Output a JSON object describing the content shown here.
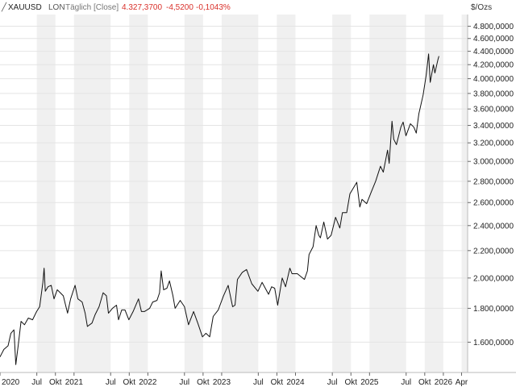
{
  "header": {
    "symbol": "XAUUSD",
    "exchange": "LON",
    "interval": "Täglich [Close]",
    "last": "4.327,3700",
    "change": "-4,5200",
    "change_pct": "-0,1043%",
    "unit": "$/Ozs"
  },
  "colors": {
    "background": "#ffffff",
    "band": "#f0f0f0",
    "line": "#111111",
    "negative": "#d9302a",
    "text": "#222222",
    "muted": "#777777"
  },
  "chart_data": {
    "type": "line",
    "yscale": "log",
    "ylim": [
      1440,
      5000
    ],
    "xlim": [
      "2020-01-01",
      "2026-05-01"
    ],
    "grid": true,
    "y_ticks": [
      {
        "v": 1600,
        "label": "1.600,0000"
      },
      {
        "v": 1800,
        "label": "1.800,0000"
      },
      {
        "v": 2000,
        "label": "2.000,0000"
      },
      {
        "v": 2200,
        "label": "2.200,0000"
      },
      {
        "v": 2400,
        "label": "2.400,0000"
      },
      {
        "v": 2600,
        "label": "2.600,0000"
      },
      {
        "v": 2800,
        "label": "2.800,0000"
      },
      {
        "v": 3000,
        "label": "3.000,0000"
      },
      {
        "v": 3200,
        "label": "3.200,0000"
      },
      {
        "v": 3400,
        "label": "3.400,0000"
      },
      {
        "v": 3600,
        "label": "3.600,0000"
      },
      {
        "v": 3800,
        "label": "3.800,0000"
      },
      {
        "v": 4000,
        "label": "4.000,0000"
      },
      {
        "v": 4200,
        "label": "4.200,0000"
      },
      {
        "v": 4400,
        "label": "4.400,0000"
      },
      {
        "v": 4600,
        "label": "4.600,0000"
      },
      {
        "v": 4800,
        "label": "4.800,0000"
      }
    ],
    "x_ticks": [
      {
        "d": "2020-01-01",
        "label": "2020"
      },
      {
        "d": "2020-07-01",
        "label": "Jul"
      },
      {
        "d": "2020-10-01",
        "label": "Okt"
      },
      {
        "d": "2021-01-01",
        "label": "2021"
      },
      {
        "d": "2021-07-01",
        "label": "Jul"
      },
      {
        "d": "2021-10-01",
        "label": "Okt"
      },
      {
        "d": "2022-01-01",
        "label": "2022"
      },
      {
        "d": "2022-07-01",
        "label": "Jul"
      },
      {
        "d": "2022-10-01",
        "label": "Okt"
      },
      {
        "d": "2023-01-01",
        "label": "2023"
      },
      {
        "d": "2023-07-01",
        "label": "Jul"
      },
      {
        "d": "2023-10-01",
        "label": "Okt"
      },
      {
        "d": "2024-01-01",
        "label": "2024"
      },
      {
        "d": "2024-07-01",
        "label": "Jul"
      },
      {
        "d": "2024-10-01",
        "label": "Okt"
      },
      {
        "d": "2025-01-01",
        "label": "2025"
      },
      {
        "d": "2025-07-01",
        "label": "Jul"
      },
      {
        "d": "2025-10-01",
        "label": "Okt"
      },
      {
        "d": "2026-01-01",
        "label": "2026"
      },
      {
        "d": "2026-04-01",
        "label": "Apr"
      }
    ],
    "series": [
      {
        "points": [
          [
            "2020-01-01",
            1520
          ],
          [
            "2020-01-20",
            1560
          ],
          [
            "2020-02-10",
            1580
          ],
          [
            "2020-02-24",
            1650
          ],
          [
            "2020-03-10",
            1670
          ],
          [
            "2020-03-19",
            1480
          ],
          [
            "2020-04-01",
            1590
          ],
          [
            "2020-04-14",
            1720
          ],
          [
            "2020-05-01",
            1700
          ],
          [
            "2020-05-20",
            1740
          ],
          [
            "2020-06-10",
            1730
          ],
          [
            "2020-06-30",
            1780
          ],
          [
            "2020-07-15",
            1810
          ],
          [
            "2020-07-31",
            1970
          ],
          [
            "2020-08-06",
            2070
          ],
          [
            "2020-08-12",
            1910
          ],
          [
            "2020-08-25",
            1940
          ],
          [
            "2020-09-10",
            1950
          ],
          [
            "2020-09-24",
            1860
          ],
          [
            "2020-10-10",
            1920
          ],
          [
            "2020-10-25",
            1900
          ],
          [
            "2020-11-09",
            1880
          ],
          [
            "2020-11-30",
            1770
          ],
          [
            "2020-12-15",
            1860
          ],
          [
            "2021-01-06",
            1950
          ],
          [
            "2021-01-20",
            1860
          ],
          [
            "2021-02-10",
            1840
          ],
          [
            "2021-02-25",
            1770
          ],
          [
            "2021-03-08",
            1690
          ],
          [
            "2021-03-31",
            1710
          ],
          [
            "2021-04-15",
            1760
          ],
          [
            "2021-05-05",
            1810
          ],
          [
            "2021-05-25",
            1900
          ],
          [
            "2021-06-10",
            1880
          ],
          [
            "2021-06-20",
            1770
          ],
          [
            "2021-07-10",
            1800
          ],
          [
            "2021-07-30",
            1820
          ],
          [
            "2021-08-09",
            1730
          ],
          [
            "2021-08-25",
            1790
          ],
          [
            "2021-09-10",
            1790
          ],
          [
            "2021-09-29",
            1730
          ],
          [
            "2021-10-20",
            1780
          ],
          [
            "2021-11-16",
            1860
          ],
          [
            "2021-11-30",
            1780
          ],
          [
            "2021-12-15",
            1780
          ],
          [
            "2022-01-10",
            1800
          ],
          [
            "2022-01-25",
            1840
          ],
          [
            "2022-02-15",
            1850
          ],
          [
            "2022-02-28",
            1900
          ],
          [
            "2022-03-08",
            2050
          ],
          [
            "2022-03-20",
            1920
          ],
          [
            "2022-04-05",
            1930
          ],
          [
            "2022-04-18",
            1980
          ],
          [
            "2022-05-05",
            1880
          ],
          [
            "2022-05-16",
            1800
          ],
          [
            "2022-06-10",
            1850
          ],
          [
            "2022-07-01",
            1810
          ],
          [
            "2022-07-21",
            1700
          ],
          [
            "2022-08-15",
            1780
          ],
          [
            "2022-09-05",
            1710
          ],
          [
            "2022-09-28",
            1630
          ],
          [
            "2022-10-15",
            1650
          ],
          [
            "2022-11-03",
            1630
          ],
          [
            "2022-11-20",
            1750
          ],
          [
            "2022-12-15",
            1790
          ],
          [
            "2023-01-10",
            1880
          ],
          [
            "2023-02-02",
            1950
          ],
          [
            "2023-02-24",
            1810
          ],
          [
            "2023-03-08",
            1820
          ],
          [
            "2023-03-20",
            1990
          ],
          [
            "2023-04-13",
            2040
          ],
          [
            "2023-05-04",
            2060
          ],
          [
            "2023-05-30",
            1960
          ],
          [
            "2023-06-29",
            1910
          ],
          [
            "2023-07-20",
            1970
          ],
          [
            "2023-08-21",
            1890
          ],
          [
            "2023-09-05",
            1940
          ],
          [
            "2023-09-20",
            1930
          ],
          [
            "2023-10-05",
            1820
          ],
          [
            "2023-10-27",
            2000
          ],
          [
            "2023-11-13",
            1940
          ],
          [
            "2023-12-04",
            2070
          ],
          [
            "2023-12-15",
            2030
          ],
          [
            "2024-01-10",
            2030
          ],
          [
            "2024-02-14",
            1990
          ],
          [
            "2024-02-29",
            2050
          ],
          [
            "2024-03-08",
            2170
          ],
          [
            "2024-03-28",
            2230
          ],
          [
            "2024-04-12",
            2400
          ],
          [
            "2024-04-25",
            2320
          ],
          [
            "2024-05-03",
            2300
          ],
          [
            "2024-05-20",
            2430
          ],
          [
            "2024-06-07",
            2290
          ],
          [
            "2024-06-25",
            2320
          ],
          [
            "2024-07-17",
            2470
          ],
          [
            "2024-08-07",
            2380
          ],
          [
            "2024-08-20",
            2510
          ],
          [
            "2024-09-10",
            2510
          ],
          [
            "2024-09-26",
            2680
          ],
          [
            "2024-10-30",
            2790
          ],
          [
            "2024-11-14",
            2560
          ],
          [
            "2024-11-25",
            2630
          ],
          [
            "2024-12-18",
            2590
          ],
          [
            "2025-01-10",
            2700
          ],
          [
            "2025-01-31",
            2800
          ],
          [
            "2025-02-24",
            2950
          ],
          [
            "2025-03-10",
            2890
          ],
          [
            "2025-03-31",
            3120
          ],
          [
            "2025-04-08",
            2980
          ],
          [
            "2025-04-22",
            3450
          ],
          [
            "2025-05-01",
            3240
          ],
          [
            "2025-05-14",
            3180
          ],
          [
            "2025-06-05",
            3380
          ],
          [
            "2025-06-16",
            3440
          ],
          [
            "2025-06-30",
            3280
          ],
          [
            "2025-07-22",
            3420
          ],
          [
            "2025-08-08",
            3380
          ],
          [
            "2025-08-20",
            3310
          ],
          [
            "2025-09-02",
            3540
          ],
          [
            "2025-09-23",
            3780
          ],
          [
            "2025-10-08",
            4050
          ],
          [
            "2025-10-20",
            4360
          ],
          [
            "2025-10-28",
            3950
          ],
          [
            "2025-11-13",
            4200
          ],
          [
            "2025-11-20",
            4080
          ],
          [
            "2025-12-05",
            4270
          ],
          [
            "2025-12-10",
            4327
          ]
        ]
      }
    ]
  }
}
